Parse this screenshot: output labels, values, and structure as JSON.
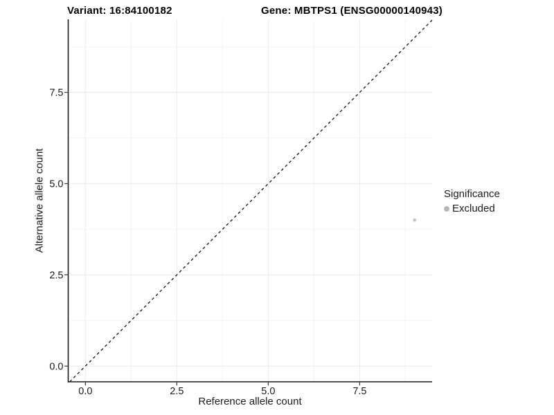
{
  "chart_data": {
    "type": "scatter",
    "title_left": "Variant: 16:84100182",
    "title_right": "Gene: MBTPS1 (ENSG00000140943)",
    "xlabel": "Reference allele count",
    "ylabel": "Alternative allele count",
    "xlim": [
      -0.47,
      9.48
    ],
    "ylim": [
      -0.43,
      9.5
    ],
    "x_ticks": {
      "values": [
        0,
        2.5,
        5,
        7.5
      ],
      "labels": [
        "0.0",
        "2.5",
        "5.0",
        "7.5"
      ]
    },
    "y_ticks": {
      "values": [
        0,
        2.5,
        5,
        7.5
      ],
      "labels": [
        "0.0",
        "2.5",
        "5.0",
        "7.5"
      ]
    },
    "minor_ticks": [
      1.25,
      3.75,
      6.25,
      8.75
    ],
    "grid": {
      "show": true,
      "major_color": "#ebebeb",
      "minor_color": "#f4f4f4"
    },
    "identity_line": {
      "slope": 1,
      "intercept": 0,
      "style": "dashed",
      "color": "#000000"
    },
    "series": [
      {
        "name": "Excluded",
        "color": "#c2c2c2",
        "points": [
          {
            "x": 9,
            "y": 4
          }
        ]
      }
    ],
    "legend": {
      "title": "Significance",
      "position": "right",
      "items": [
        {
          "label": "Excluded",
          "color": "#b5b5b5"
        }
      ]
    },
    "axis_color": "#1a1a1a",
    "tick_color": "#333333",
    "background": "#ffffff"
  }
}
